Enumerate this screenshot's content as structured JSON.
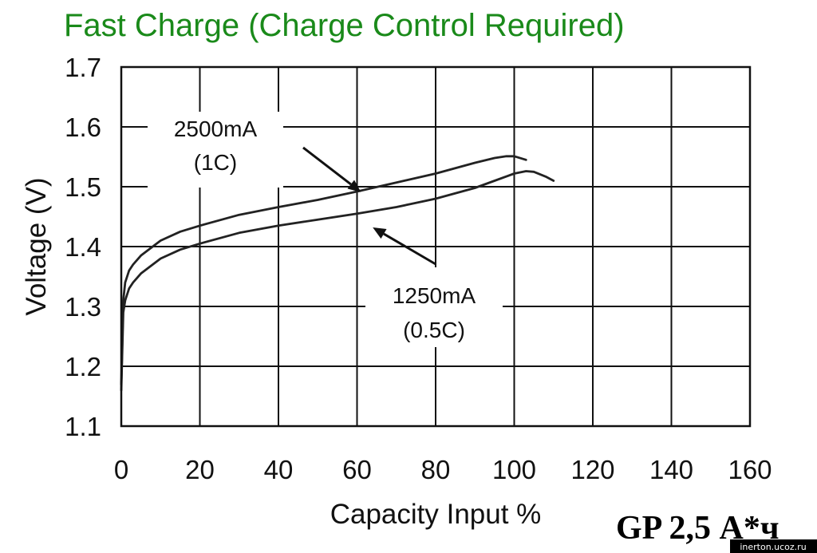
{
  "chart_data": {
    "type": "line",
    "title": "Fast Charge (Charge Control Required)",
    "xlabel": "Capacity Input %",
    "ylabel": "Voltage (V)",
    "xlim": [
      0,
      160
    ],
    "ylim": [
      1.1,
      1.7
    ],
    "x_ticks": [
      0,
      20,
      40,
      60,
      80,
      100,
      120,
      140,
      160
    ],
    "y_ticks": [
      1.1,
      1.2,
      1.3,
      1.4,
      1.5,
      1.6,
      1.7
    ],
    "y_tick_labels": [
      "1.1",
      "1.2",
      "1.3",
      "1.4",
      "1.5",
      "1.6",
      "1.7"
    ],
    "x_tick_labels": [
      "0",
      "20",
      "40",
      "60",
      "80",
      "100",
      "120",
      "140",
      "160"
    ],
    "grid": true,
    "series": [
      {
        "label_line1": "2500mA",
        "label_line2": "(1C)",
        "x": [
          0,
          0.5,
          1,
          2,
          3,
          5,
          8,
          10,
          15,
          20,
          30,
          40,
          50,
          60,
          70,
          80,
          90,
          95,
          98,
          100,
          103
        ],
        "y": [
          1.17,
          1.31,
          1.34,
          1.36,
          1.37,
          1.385,
          1.4,
          1.41,
          1.425,
          1.435,
          1.453,
          1.466,
          1.478,
          1.492,
          1.507,
          1.522,
          1.54,
          1.548,
          1.551,
          1.551,
          1.545
        ]
      },
      {
        "label_line1": "1250mA",
        "label_line2": "(0.5C)",
        "x": [
          0,
          0.5,
          1,
          2,
          3,
          5,
          8,
          10,
          15,
          20,
          30,
          40,
          50,
          60,
          70,
          80,
          90,
          95,
          100,
          103,
          105,
          108,
          110
        ],
        "y": [
          1.16,
          1.29,
          1.31,
          1.33,
          1.34,
          1.355,
          1.37,
          1.38,
          1.395,
          1.405,
          1.423,
          1.435,
          1.445,
          1.455,
          1.466,
          1.48,
          1.498,
          1.51,
          1.522,
          1.526,
          1.525,
          1.517,
          1.51
        ]
      }
    ],
    "annotations": [
      {
        "text_line1": "2500mA",
        "text_line2": "(1C)",
        "arrow_to_x": 61,
        "arrow_to_y": 1.491
      },
      {
        "text_line1": "1250mA",
        "text_line2": "(0.5C)",
        "arrow_to_x": 64,
        "arrow_to_y": 1.432
      }
    ]
  },
  "brand_label": "GP 2,5 А*ч",
  "watermark": "inerton.ucoz.ru"
}
